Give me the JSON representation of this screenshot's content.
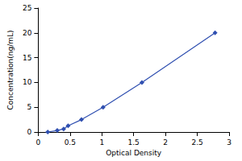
{
  "chart_data": {
    "type": "line",
    "x": [
      0.15,
      0.3,
      0.4,
      0.47,
      0.68,
      1.02,
      1.63,
      2.78
    ],
    "values": [
      0,
      0.3125,
      0.625,
      1.25,
      2.5,
      5,
      10,
      20
    ],
    "xlabel": "Optical Density",
    "ylabel": "Concentration(ng/mL)",
    "xlim": [
      0,
      3
    ],
    "xticks": [
      0,
      0.5,
      1,
      1.5,
      2,
      2.5,
      3
    ],
    "ylim": [
      0,
      25
    ],
    "yticks": [
      0,
      5,
      10,
      15,
      20,
      25
    ],
    "grid": false,
    "color": "#2f4fb0",
    "marker": "diamond"
  }
}
